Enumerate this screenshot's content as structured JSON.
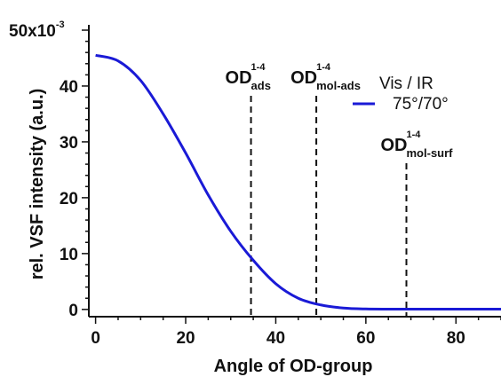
{
  "chart_data": {
    "type": "line",
    "xlabel": "Angle of OD-group",
    "ylabel": "rel. VSF intensity (a.u.)",
    "y_axis_multiplier_label": "50x10",
    "y_axis_multiplier_exponent": "-3",
    "xlim": [
      -1.5,
      90
    ],
    "ylim": [
      -1.3,
      50
    ],
    "x_ticks": [
      "0",
      "20",
      "40",
      "60",
      "80"
    ],
    "y_ticks": [
      "0",
      "10",
      "20",
      "30",
      "40"
    ],
    "grid": false,
    "legend": {
      "position": "top-right",
      "title": "Vis / IR",
      "entries": [
        "75°/70°"
      ]
    },
    "series": [
      {
        "name": "75°/70°",
        "color": "#1a1ad6",
        "x": [
          0,
          5,
          10,
          15,
          20,
          25,
          30,
          35,
          40,
          45,
          50,
          55,
          60,
          65,
          70,
          75,
          80,
          85,
          90
        ],
        "y": [
          45.5,
          44.5,
          41.0,
          35.0,
          28.0,
          20.5,
          14.0,
          8.8,
          4.6,
          2.0,
          0.8,
          0.25,
          0.08,
          0.05,
          0.05,
          0.05,
          0.05,
          0.05,
          0.05
        ]
      }
    ],
    "annotations": [
      {
        "main": "OD",
        "sup": "1-4",
        "sub": "ads",
        "x": 34.5
      },
      {
        "main": "OD",
        "sup": "1-4",
        "sub": "mol-ads",
        "x": 49
      },
      {
        "main": "OD",
        "sup": "1-4",
        "sub": "mol-surf",
        "x": 69
      }
    ]
  }
}
